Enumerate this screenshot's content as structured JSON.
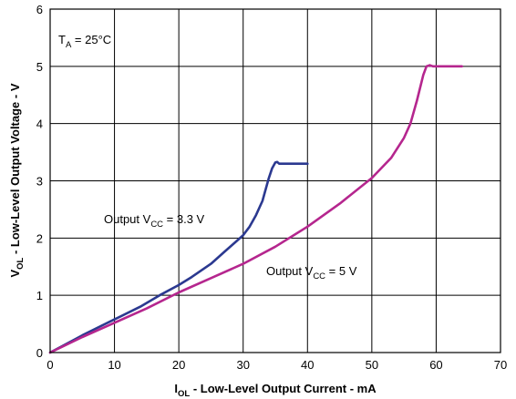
{
  "chart_data": {
    "type": "line",
    "title": "",
    "xlabel": {
      "main": "I",
      "sub": "OL",
      "rest": " - Low-Level Output Current - mA"
    },
    "ylabel": {
      "main": "V",
      "sub": "OL",
      "rest": " - Low-Level Output Voltage - V"
    },
    "xlim": [
      0,
      70
    ],
    "ylim": [
      0,
      6
    ],
    "xticks": [
      "0",
      "10",
      "20",
      "30",
      "40",
      "50",
      "60",
      "70"
    ],
    "yticks": [
      "0",
      "1",
      "2",
      "3",
      "4",
      "5",
      "6"
    ],
    "grid": true,
    "annotations": [
      {
        "id": "ta",
        "main": "T",
        "sub": "A",
        "rest": " = 25°C"
      },
      {
        "id": "s33",
        "main": "Output V",
        "sub": "CC",
        "rest": " = 3.3 V"
      },
      {
        "id": "s5",
        "main": "Output V",
        "sub": "CC",
        "rest": " = 5 V"
      }
    ],
    "series": [
      {
        "color": "#2b3990",
        "x": [
          0,
          2,
          5,
          8,
          10,
          14,
          17,
          20,
          22,
          25,
          27,
          29,
          30,
          31,
          32,
          33,
          33.5,
          34,
          34.5,
          35,
          35.3,
          35.6,
          36,
          37,
          38,
          40
        ],
        "y": [
          0,
          0.12,
          0.3,
          0.47,
          0.58,
          0.8,
          1.0,
          1.18,
          1.32,
          1.55,
          1.75,
          1.95,
          2.05,
          2.2,
          2.4,
          2.65,
          2.85,
          3.05,
          3.22,
          3.32,
          3.33,
          3.3,
          3.3,
          3.3,
          3.3,
          3.3
        ]
      },
      {
        "color": "#b5268e",
        "x": [
          0,
          5,
          10,
          15,
          20,
          25,
          30,
          35,
          40,
          45,
          50,
          53,
          55,
          56,
          57,
          58,
          58.5,
          59,
          59.5,
          60,
          62,
          64
        ],
        "y": [
          0,
          0.27,
          0.52,
          0.77,
          1.05,
          1.3,
          1.55,
          1.85,
          2.2,
          2.6,
          3.05,
          3.4,
          3.75,
          4.0,
          4.4,
          4.85,
          5.0,
          5.02,
          5.0,
          5.0,
          5.0,
          5.0
        ]
      }
    ]
  }
}
